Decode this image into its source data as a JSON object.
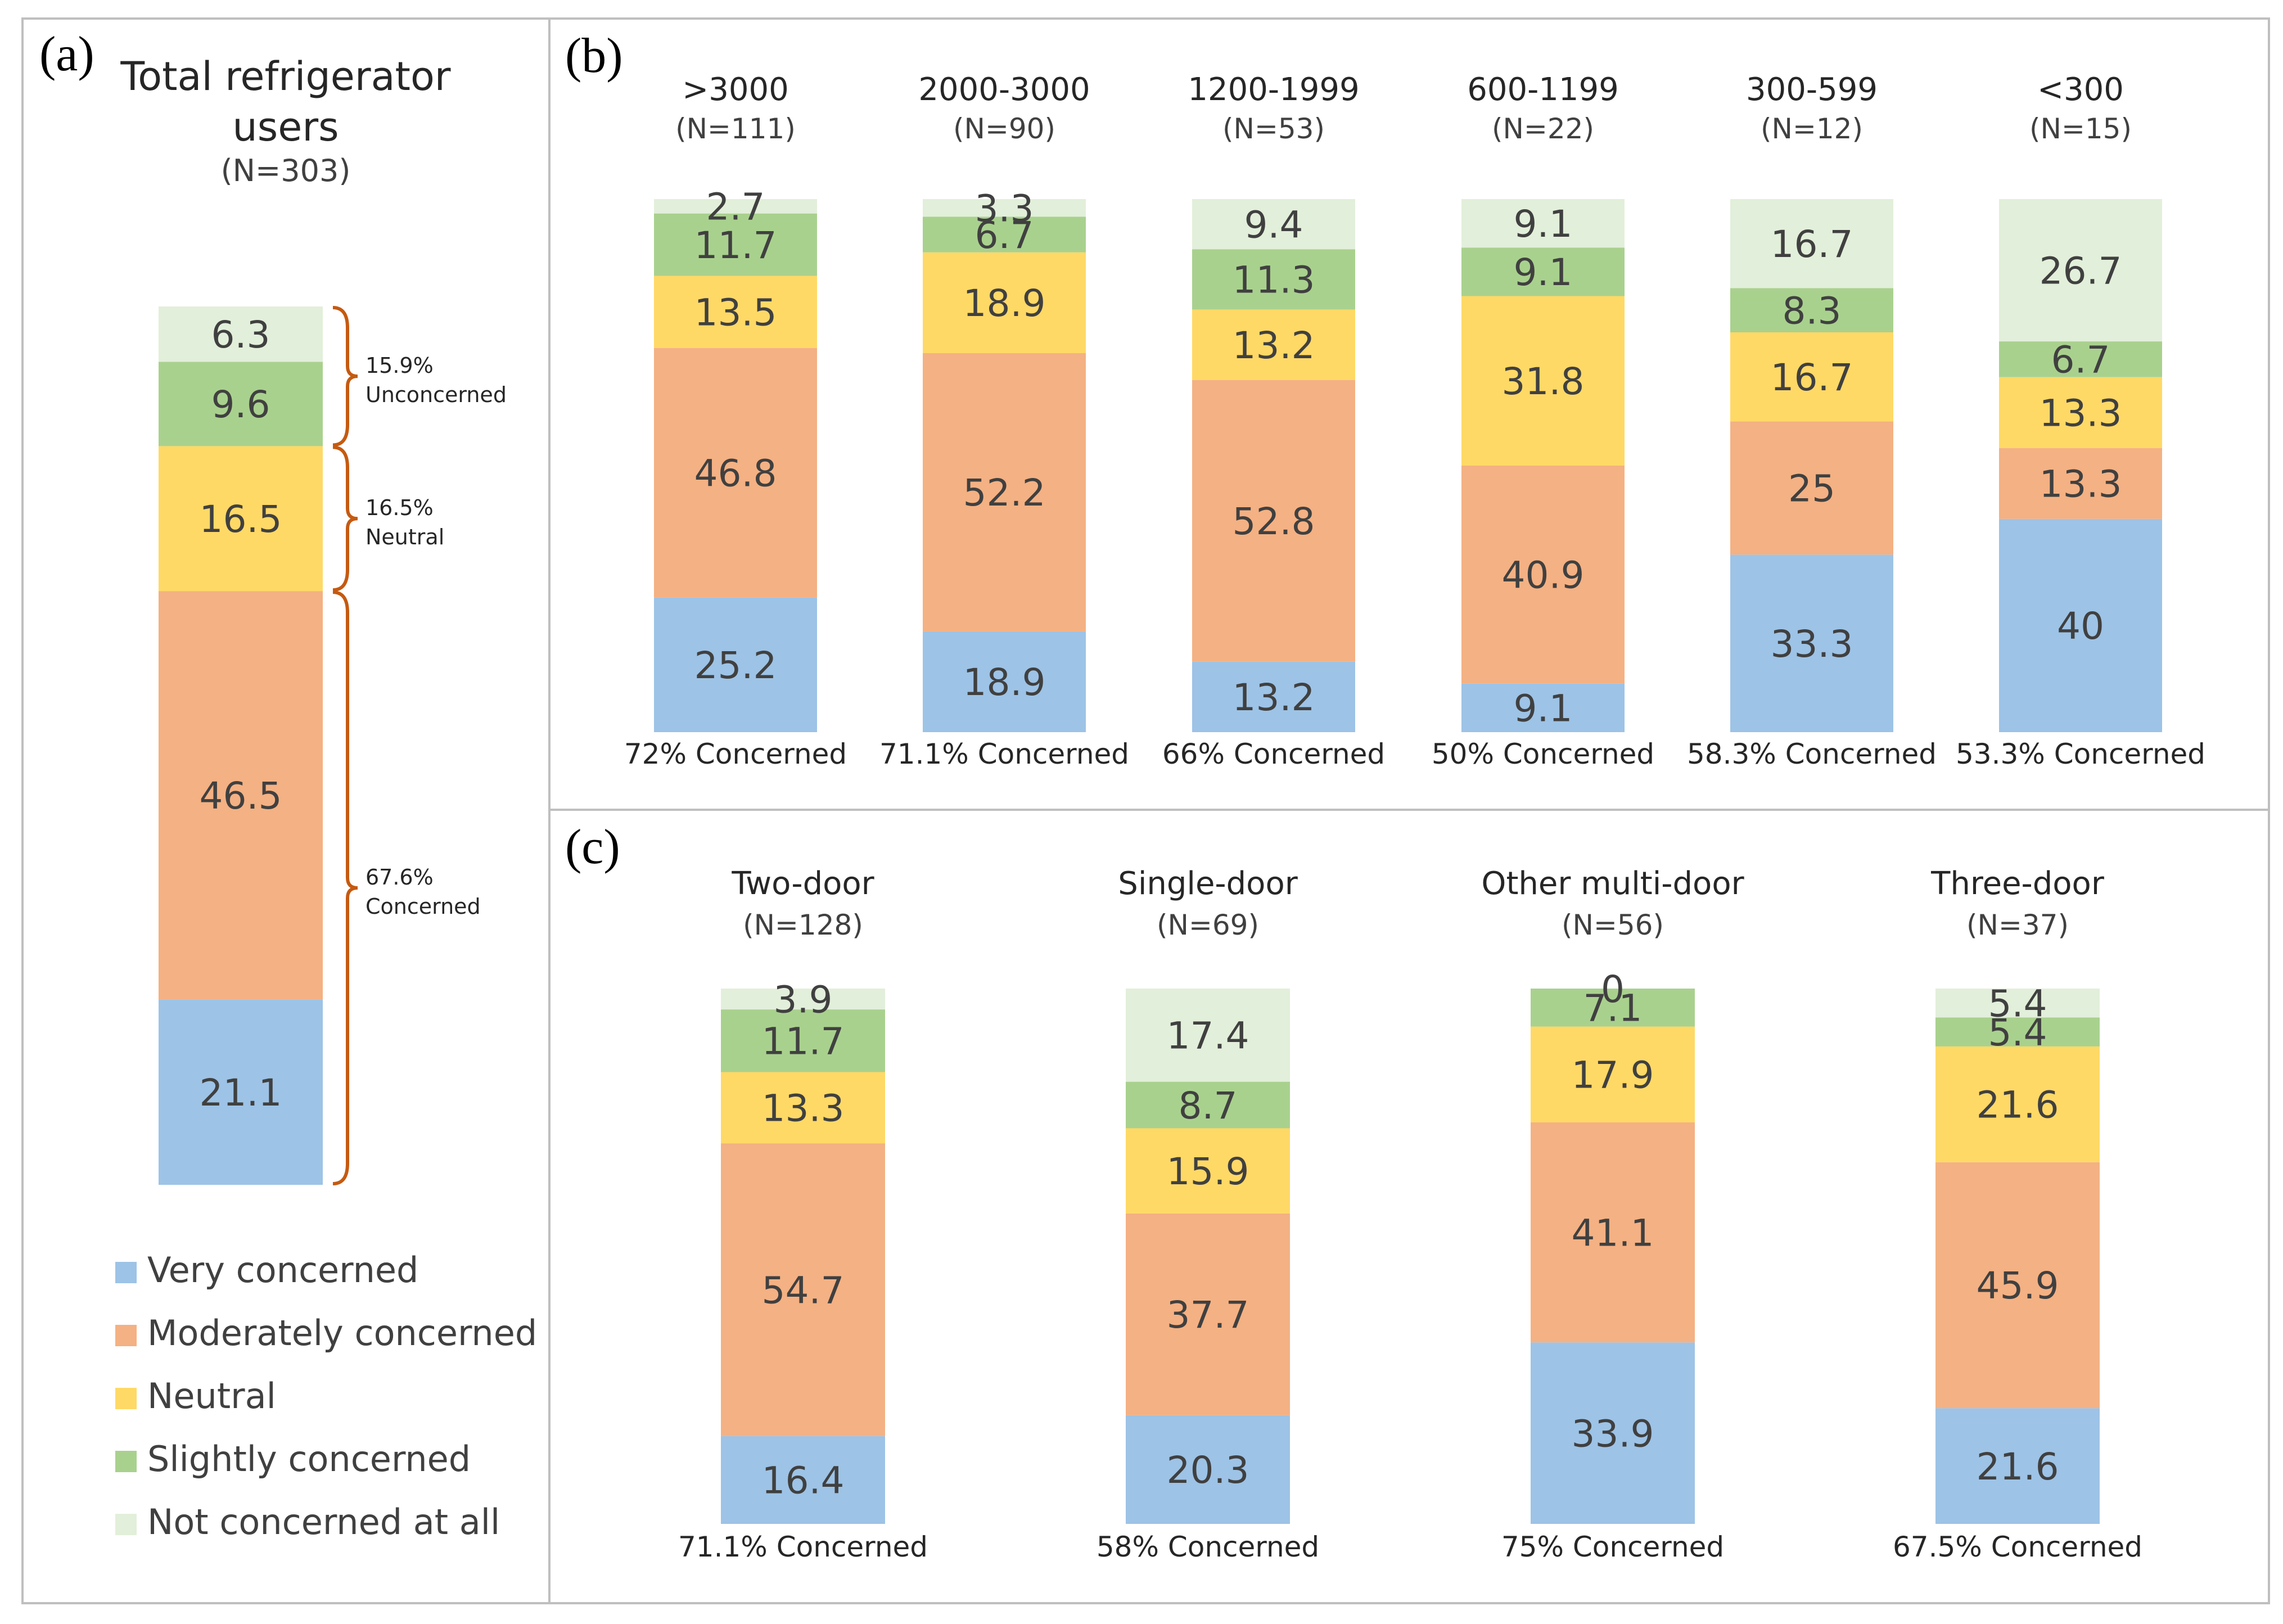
{
  "chart_data": {
    "type": "bar",
    "stacked": true,
    "stack_order_bottom_to_top": [
      "Very concerned",
      "Moderately concerned",
      "Neutral",
      "Slightly concerned",
      "Not concerned at all"
    ],
    "legend": [
      {
        "label": "Very concerned",
        "color": "#9DC3E6"
      },
      {
        "label": "Moderately concerned",
        "color": "#F4B183"
      },
      {
        "label": "Neutral",
        "color": "#FFD966"
      },
      {
        "label": "Slightly concerned",
        "color": "#A9D18E"
      },
      {
        "label": "Not concerned at all",
        "color": "#E2EFDA"
      }
    ],
    "panels": [
      {
        "letter": "(a)",
        "title": [
          "Total refrigerator",
          "users"
        ],
        "n_label": "(N=303)",
        "categories": [
          "Total"
        ],
        "values": [
          [
            21.1,
            46.5,
            16.5,
            9.6,
            6.3
          ]
        ],
        "brackets": [
          {
            "pct": "15.9%",
            "label": "Unconcerned"
          },
          {
            "pct": "16.5%",
            "label": "Neutral"
          },
          {
            "pct": "67.6%",
            "label": "Concerned"
          }
        ]
      },
      {
        "letter": "(b)",
        "categories": [
          ">3000",
          "2000-3000",
          "1200-1999",
          "600-1199",
          "300-599",
          "<300"
        ],
        "n_labels": [
          "(N=111)",
          "(N=90)",
          "(N=53)",
          "(N=22)",
          "(N=12)",
          "(N=15)"
        ],
        "values": [
          [
            25.2,
            46.8,
            13.5,
            11.7,
            2.7
          ],
          [
            18.9,
            52.2,
            18.9,
            6.7,
            3.3
          ],
          [
            13.2,
            52.8,
            13.2,
            11.3,
            9.4
          ],
          [
            9.1,
            40.9,
            31.8,
            9.1,
            9.1
          ],
          [
            33.3,
            25,
            16.7,
            8.3,
            16.7
          ],
          [
            40,
            13.3,
            13.3,
            6.7,
            26.7
          ]
        ],
        "concerned_labels": [
          "72% Concerned",
          "71.1% Concerned",
          "66% Concerned",
          "50% Concerned",
          "58.3% Concerned",
          "53.3% Concerned"
        ]
      },
      {
        "letter": "(c)",
        "categories": [
          "Two-door",
          "Single-door",
          "Other multi-door",
          "Three-door"
        ],
        "n_labels": [
          "(N=128)",
          "(N=69)",
          "(N=56)",
          "(N=37)"
        ],
        "values": [
          [
            16.4,
            54.7,
            13.3,
            11.7,
            3.9
          ],
          [
            20.3,
            37.7,
            15.9,
            8.7,
            17.4
          ],
          [
            33.9,
            41.1,
            17.9,
            7.1,
            0
          ],
          [
            21.6,
            45.9,
            21.6,
            5.4,
            5.4
          ]
        ],
        "concerned_labels": [
          "71.1% Concerned",
          "58% Concerned",
          "75% Concerned",
          "67.5% Concerned"
        ]
      }
    ]
  }
}
